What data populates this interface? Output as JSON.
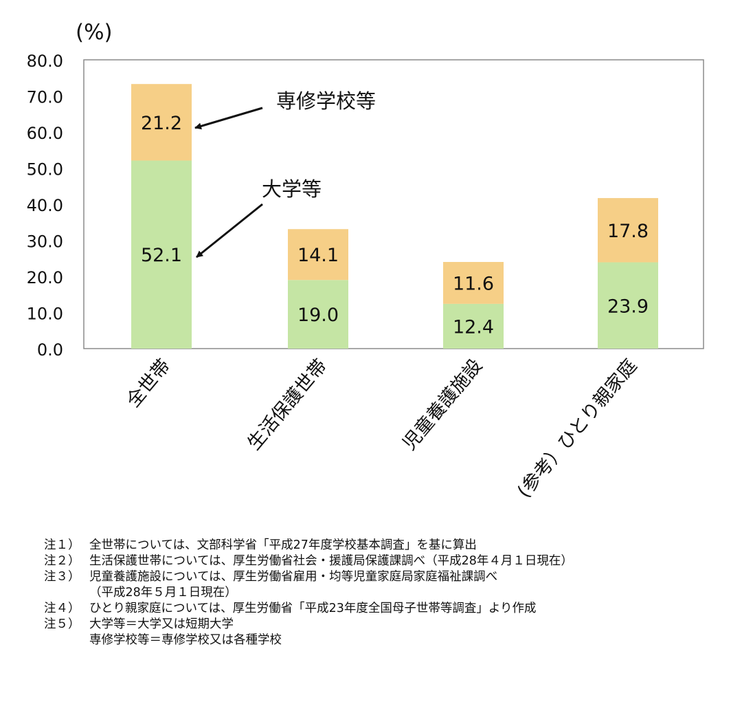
{
  "chart_data": {
    "type": "bar",
    "stacked": true,
    "unit_label": "(%)",
    "ylim": [
      0,
      80
    ],
    "yticks": [
      "80.0",
      "70.0",
      "60.0",
      "50.0",
      "40.0",
      "30.0",
      "20.0",
      "10.0",
      "0.0"
    ],
    "categories": [
      "全世帯",
      "生活保護世帯",
      "児童養護施設",
      "(参考）ひとり親家庭"
    ],
    "series": [
      {
        "name": "大学等",
        "values": [
          52.1,
          19.0,
          12.4,
          23.9
        ],
        "labels": [
          "52.1",
          "19.0",
          "12.4",
          "23.9"
        ],
        "color": "#c5e5a4"
      },
      {
        "name": "専修学校等",
        "values": [
          21.2,
          14.1,
          11.6,
          17.8
        ],
        "labels": [
          "21.2",
          "14.1",
          "11.6",
          "17.8"
        ],
        "color": "#f6cf87"
      }
    ],
    "grid": false,
    "legend": "annotations with arrows on first bar"
  },
  "notes": [
    {
      "label": "注１）",
      "lines": [
        "全世帯については、文部科学省「平成27年度学校基本調査」を基に算出"
      ]
    },
    {
      "label": "注２）",
      "lines": [
        "生活保護世帯については、厚生労働省社会・援護局保護課調べ（平成28年４月１日現在）"
      ]
    },
    {
      "label": "注３）",
      "lines": [
        "児童養護施設については、厚生労働省雇用・均等児童家庭局家庭福祉課調べ",
        "（平成28年５月１日現在）"
      ]
    },
    {
      "label": "注４）",
      "lines": [
        "ひとり親家庭については、厚生労働省「平成23年度全国母子世帯等調査」より作成"
      ]
    },
    {
      "label": "注５）",
      "lines": [
        "大学等＝大学又は短期大学",
        "専修学校等＝専修学校又は各種学校"
      ]
    }
  ]
}
